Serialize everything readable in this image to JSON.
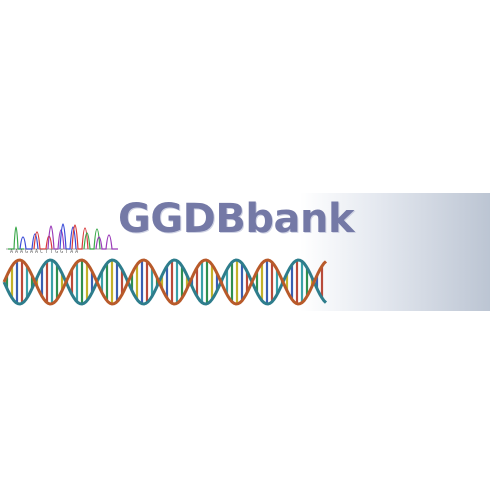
{
  "brand": {
    "name": "GGDBbank",
    "sequence": "AAAGAACTTGGTAA"
  },
  "colors": {
    "brand_text": "#7479a6",
    "trace_blue": "#3a4bd8",
    "trace_red": "#d83a3a",
    "trace_green": "#3aa84a",
    "trace_purple": "#9a3ab8",
    "helix_backbone_a": "#2e7d8c",
    "helix_backbone_b": "#b85a2a",
    "fade_end": "#bcc5d3"
  },
  "icons": {
    "chromatogram": "chromatogram-trace-icon",
    "helix": "dna-double-helix-icon"
  }
}
